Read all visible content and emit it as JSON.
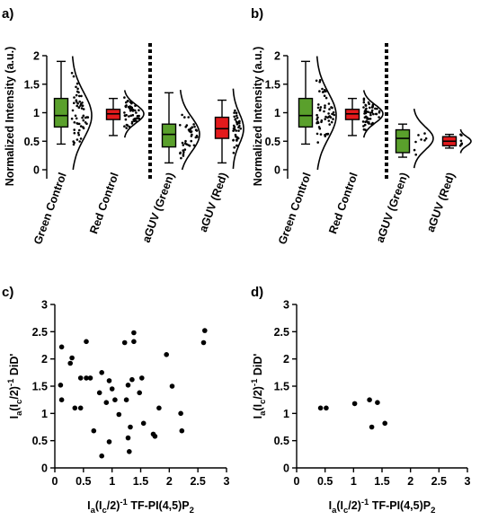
{
  "colors": {
    "green": "#5aa02c",
    "red": "#e31a1c",
    "black": "#000000"
  },
  "chart_data": [
    {
      "panel": "a)",
      "type": "box",
      "ylabel": "Normalized Intensity (a.u.)",
      "ylim": [
        0,
        2
      ],
      "yticks": [
        "0",
        "0.5",
        "1",
        "1.5",
        "2"
      ],
      "categories": [
        "Green Control",
        "Red Control",
        "aGUV (Green)",
        "aGUV (Red)"
      ],
      "divider_after": 2,
      "boxes": [
        {
          "category": "Green Control",
          "color": "green",
          "min": 0.45,
          "q1": 0.75,
          "median": 0.95,
          "q3": 1.25,
          "max": 1.9,
          "points": 55,
          "spread": 0.4
        },
        {
          "category": "Red Control",
          "color": "red",
          "min": 0.6,
          "q1": 0.88,
          "median": 0.98,
          "q3": 1.06,
          "max": 1.25,
          "points": 50,
          "spread": 0.16
        },
        {
          "category": "aGUV (Green)",
          "color": "green",
          "min": 0.12,
          "q1": 0.4,
          "median": 0.62,
          "q3": 0.8,
          "max": 1.35,
          "points": 40,
          "spread": 0.3
        },
        {
          "category": "aGUV (Red)",
          "color": "red",
          "min": 0.12,
          "q1": 0.55,
          "median": 0.72,
          "q3": 0.92,
          "max": 1.22,
          "points": 40,
          "spread": 0.27
        }
      ]
    },
    {
      "panel": "b)",
      "type": "box",
      "ylabel": "Normalized Intensity (a.u.)",
      "ylim": [
        0,
        2
      ],
      "yticks": [
        "0",
        "0.5",
        "1",
        "1.5",
        "2"
      ],
      "categories": [
        "Green Control",
        "Red Control",
        "aGUV (Green)",
        "aGUV (Red)"
      ],
      "divider_after": 2,
      "boxes": [
        {
          "category": "Green Control",
          "color": "green",
          "min": 0.45,
          "q1": 0.75,
          "median": 0.95,
          "q3": 1.25,
          "max": 1.9,
          "points": 55,
          "spread": 0.4
        },
        {
          "category": "Red Control",
          "color": "red",
          "min": 0.6,
          "q1": 0.88,
          "median": 0.98,
          "q3": 1.06,
          "max": 1.25,
          "points": 50,
          "spread": 0.16
        },
        {
          "category": "aGUV (Green)",
          "color": "green",
          "min": 0.22,
          "q1": 0.3,
          "median": 0.55,
          "q3": 0.7,
          "max": 0.8,
          "points": 8,
          "spread": 0.2
        },
        {
          "category": "aGUV (Red)",
          "color": "red",
          "min": 0.38,
          "q1": 0.42,
          "median": 0.5,
          "q3": 0.58,
          "max": 0.62,
          "points": 7,
          "spread": 0.08
        }
      ]
    },
    {
      "panel": "c)",
      "type": "scatter",
      "xlabel_main": "I",
      "xlabel_sub1": "a",
      "xlabel_mid": "(I",
      "xlabel_sub2": "c",
      "xlabel_end": "/2)",
      "xlabel_sup": "-1",
      "xlabel_tail": " TF-PI(4,5)P",
      "xlabel_sub3": "2",
      "ylabel_main": "I",
      "ylabel_sub1": "a",
      "ylabel_mid": "(I",
      "ylabel_sub2": "c",
      "ylabel_end": "/2)",
      "ylabel_sup": "-1",
      "ylabel_tail": " DiD'",
      "xlim": [
        0,
        3
      ],
      "ylim": [
        0,
        3
      ],
      "xticks": [
        "0",
        "0.5",
        "1",
        "1.5",
        "2",
        "2.5",
        "3"
      ],
      "yticks": [
        "0",
        "0.5",
        "1",
        "1.5",
        "2",
        "2.5",
        "3"
      ],
      "points": [
        [
          0.12,
          2.22
        ],
        [
          0.1,
          1.52
        ],
        [
          0.12,
          1.25
        ],
        [
          0.27,
          1.92
        ],
        [
          0.3,
          2.02
        ],
        [
          0.35,
          1.1
        ],
        [
          0.45,
          1.1
        ],
        [
          0.45,
          1.65
        ],
        [
          0.55,
          1.65
        ],
        [
          0.55,
          2.32
        ],
        [
          0.62,
          1.65
        ],
        [
          0.68,
          0.68
        ],
        [
          0.78,
          1.38
        ],
        [
          0.82,
          1.75
        ],
        [
          0.82,
          0.22
        ],
        [
          0.9,
          1.2
        ],
        [
          0.95,
          0.48
        ],
        [
          0.95,
          1.6
        ],
        [
          1.0,
          1.45
        ],
        [
          1.05,
          1.25
        ],
        [
          1.12,
          0.98
        ],
        [
          1.22,
          2.3
        ],
        [
          1.25,
          1.25
        ],
        [
          1.28,
          1.52
        ],
        [
          1.28,
          0.55
        ],
        [
          1.3,
          0.3
        ],
        [
          1.32,
          0.75
        ],
        [
          1.35,
          1.62
        ],
        [
          1.38,
          2.48
        ],
        [
          1.38,
          2.32
        ],
        [
          1.48,
          1.38
        ],
        [
          1.52,
          1.65
        ],
        [
          1.55,
          0.82
        ],
        [
          1.72,
          0.62
        ],
        [
          1.82,
          1.1
        ],
        [
          1.95,
          2.08
        ],
        [
          2.05,
          1.5
        ],
        [
          2.2,
          1.0
        ],
        [
          2.22,
          0.68
        ],
        [
          2.6,
          2.3
        ],
        [
          2.62,
          2.52
        ],
        [
          1.75,
          0.58
        ]
      ]
    },
    {
      "panel": "d)",
      "type": "scatter",
      "xlabel_main": "I",
      "xlabel_sub1": "a",
      "xlabel_mid": "(I",
      "xlabel_sub2": "c",
      "xlabel_end": "/2)",
      "xlabel_sup": "-1",
      "xlabel_tail": " TF-PI(4,5)P",
      "xlabel_sub3": "2",
      "ylabel_main": "I",
      "ylabel_sub1": "a",
      "ylabel_mid": "(I",
      "ylabel_sub2": "c",
      "ylabel_end": "/2)",
      "ylabel_sup": "-1",
      "ylabel_tail": " DiD'",
      "xlim": [
        0,
        3
      ],
      "ylim": [
        0,
        3
      ],
      "xticks": [
        "0",
        "0.5",
        "1",
        "1.5",
        "2",
        "2.5",
        "3"
      ],
      "yticks": [
        "0",
        "0.5",
        "1",
        "1.5",
        "2",
        "2.5",
        "3"
      ],
      "points": [
        [
          0.42,
          1.1
        ],
        [
          0.52,
          1.1
        ],
        [
          1.02,
          1.18
        ],
        [
          1.28,
          1.25
        ],
        [
          1.32,
          0.75
        ],
        [
          1.42,
          1.2
        ],
        [
          1.55,
          0.82
        ]
      ]
    }
  ]
}
